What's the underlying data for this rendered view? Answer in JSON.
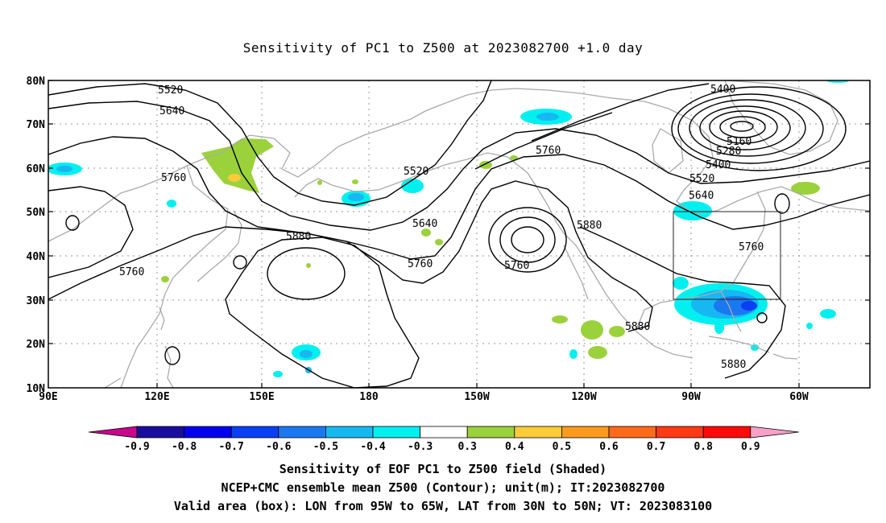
{
  "title": "Sensitivity of PC1 to Z500 at 2023082700 +1.0 day",
  "lat_labels": [
    "80N",
    "70N",
    "60N",
    "50N",
    "40N",
    "30N",
    "20N",
    "10N"
  ],
  "lon_labels": [
    "90E",
    "120E",
    "150E",
    "180",
    "150W",
    "120W",
    "90W",
    "60W"
  ],
  "contour_labels": [
    "5520",
    "5640",
    "5760",
    "5520",
    "5640",
    "5760",
    "5880",
    "5760",
    "5760",
    "5760",
    "5880",
    "5880",
    "5880",
    "5400",
    "5160",
    "5280",
    "5400",
    "5520",
    "5640",
    "5760"
  ],
  "colorbar": {
    "labels": [
      "-0.9",
      "-0.8",
      "-0.7",
      "-0.6",
      "-0.5",
      "-0.4",
      "-0.3",
      "0.3",
      "0.4",
      "0.5",
      "0.6",
      "0.7",
      "0.8",
      "0.9"
    ],
    "colors": [
      "#1a0d9e",
      "#0000ee",
      "#0b3ff5",
      "#1a78f0",
      "#17b8f2",
      "#00f0f0",
      "#ffffff",
      "#9bd13a",
      "#fbcb3a",
      "#fb9a1c",
      "#ff6a1a",
      "#ff3a14",
      "#ff0a0a"
    ],
    "left_arrow_color": "#c8078c",
    "right_arrow_color": "#f8a0c8"
  },
  "caption": [
    "Sensitivity of EOF PC1 to Z500 field (Shaded)",
    "NCEP+CMC ensemble mean Z500 (Contour); unit(m); IT:2023082700",
    "Valid area (box): LON from 95W to 65W, LAT from 30N to 50N; VT: 2023083100"
  ]
}
